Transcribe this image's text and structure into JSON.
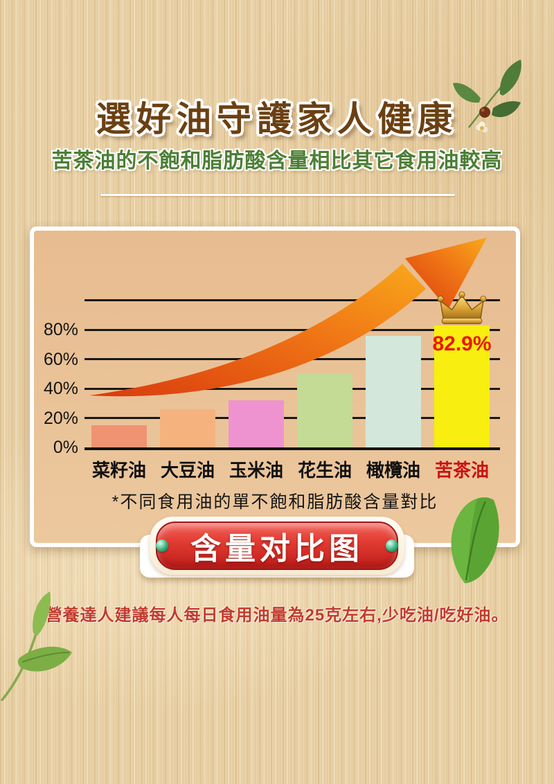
{
  "header": {
    "title": "選好油守護家人健康",
    "subtitle": "苦茶油的不飽和脂肪酸含量相比其它食用油較高"
  },
  "chart_data": {
    "type": "bar",
    "title": "含量对比图",
    "caption": "*不同食用油的單不飽和脂肪酸含量對比",
    "categories": [
      "菜籽油",
      "大豆油",
      "玉米油",
      "花生油",
      "橄欖油",
      "苦茶油"
    ],
    "values": [
      15,
      26,
      32,
      50,
      76,
      82.9
    ],
    "bar_colors": [
      "#ef9372",
      "#f6b27e",
      "#ee93cf",
      "#c3db95",
      "#d3e8da",
      "#f8ee10"
    ],
    "category_label_colors": [
      "#111111",
      "#111111",
      "#111111",
      "#111111",
      "#111111",
      "#cc1111"
    ],
    "yticks": [
      0,
      20,
      40,
      60,
      80
    ],
    "ytick_suffix": "%",
    "ylim": [
      0,
      106
    ],
    "grid": true,
    "legend": false,
    "highlight": {
      "category": "苦茶油",
      "value_label": "82.9%",
      "crown": true
    },
    "trend_arrow": "ascending"
  },
  "badge": {
    "label": "含量对比图"
  },
  "footnote": "營養達人建議每人每日食用油量為25克左右,少吃油/吃好油。",
  "colors": {
    "title_brown": "#6b4012",
    "subtitle_green": "#4c7f35",
    "highlight_red": "#ed1606",
    "badge_red": "#d42a24",
    "panel_bg": "#e8bf93",
    "arrow_orange_start": "#d93a0e",
    "arrow_orange_end": "#f9a81b"
  },
  "decorations": [
    "camellia-branch",
    "tea-leaf",
    "tea-branch"
  ]
}
